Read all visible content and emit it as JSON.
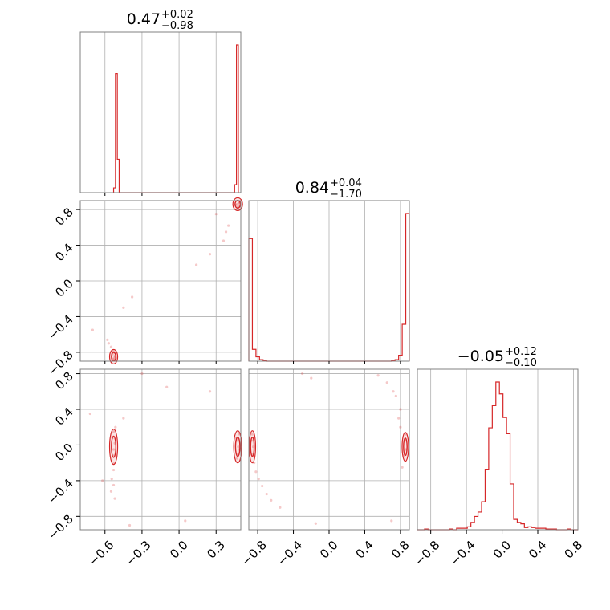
{
  "colors": {
    "accent": "#d62728",
    "grid": "#b0b0b0",
    "frame": "#808080"
  },
  "titles": {
    "p0": {
      "value": "0.47",
      "plus": "+0.02",
      "minus": "−0.98"
    },
    "p1": {
      "value": "0.84",
      "plus": "+0.04",
      "minus": "−1.70"
    },
    "p2": {
      "value": "−0.05",
      "plus": "+0.12",
      "minus": "−0.10"
    }
  },
  "chart_data": {
    "type": "corner",
    "grid": true,
    "params": [
      {
        "range": [
          -0.8,
          0.5
        ],
        "ticks": [
          -0.6,
          -0.3,
          0.0,
          0.3
        ],
        "tick_labels": [
          "−0.6",
          "−0.3",
          "0.0",
          "0.3"
        ],
        "quantile_lines": [
          -0.6,
          -0.3,
          0.0,
          0.3
        ],
        "histogram": {
          "bin_edges": [
            -0.53,
            -0.515,
            -0.5,
            -0.485,
            0.45,
            0.465,
            0.48
          ],
          "counts": [
            0.03,
            0.75,
            0.21,
            0,
            0.05,
            0.93
          ]
        }
      },
      {
        "range": [
          -0.9,
          0.9
        ],
        "ticks": [
          -0.8,
          -0.4,
          0.0,
          0.4,
          0.8
        ],
        "tick_labels": [
          "−0.8",
          "−0.4",
          "0.0",
          "0.4",
          "0.8"
        ],
        "quantile_lines": [
          -0.8,
          -0.4,
          0.0,
          0.4,
          0.8
        ],
        "histogram": {
          "bin_edges": [
            -0.9,
            -0.86,
            -0.82,
            -0.78,
            -0.74,
            -0.7,
            0.7,
            0.74,
            0.78,
            0.82,
            0.86,
            0.9
          ],
          "counts": [
            0.83,
            0.08,
            0.03,
            0.01,
            0.005,
            0,
            0.005,
            0.01,
            0.04,
            0.25,
            1.0
          ]
        }
      },
      {
        "range": [
          -0.95,
          0.85
        ],
        "ticks": [
          -0.8,
          -0.4,
          0.0,
          0.4,
          0.8
        ],
        "tick_labels": [
          "−0.8",
          "−0.4",
          "0.0",
          "0.4",
          "0.8"
        ],
        "quantile_lines": [
          -0.8,
          -0.4,
          0.0,
          0.4,
          0.8
        ],
        "histogram": {
          "bin_edges": [
            -0.95,
            -0.91,
            -0.87,
            -0.83,
            -0.79,
            -0.75,
            -0.71,
            -0.67,
            -0.63,
            -0.59,
            -0.55,
            -0.51,
            -0.47,
            -0.43,
            -0.39,
            -0.35,
            -0.31,
            -0.27,
            -0.23,
            -0.19,
            -0.15,
            -0.11,
            -0.07,
            -0.03,
            0.01,
            0.05,
            0.09,
            0.13,
            0.17,
            0.21,
            0.25,
            0.29,
            0.33,
            0.37,
            0.41,
            0.45,
            0.49,
            0.53,
            0.57,
            0.61,
            0.65,
            0.69,
            0.73,
            0.77,
            0.81,
            0.85
          ],
          "counts": [
            0,
            0,
            0.005,
            0,
            0,
            0,
            0,
            0,
            0,
            0.005,
            0,
            0.01,
            0.01,
            0.01,
            0.02,
            0.05,
            0.09,
            0.12,
            0.19,
            0.41,
            0.69,
            0.84,
            1.0,
            0.92,
            0.76,
            0.65,
            0.31,
            0.07,
            0.05,
            0.04,
            0.015,
            0.02,
            0.015,
            0.01,
            0.01,
            0.01,
            0.005,
            0.005,
            0.005,
            0,
            0,
            0,
            0.005,
            0,
            0
          ]
        }
      }
    ],
    "pairs": [
      {
        "row": 1,
        "col": 0,
        "contours": [],
        "samples": [
          [
            -0.53,
            -0.88
          ],
          [
            -0.52,
            -0.84
          ],
          [
            -0.54,
            -0.82
          ],
          [
            -0.51,
            -0.86
          ],
          [
            -0.525,
            -0.8
          ],
          [
            -0.535,
            -0.78
          ],
          [
            -0.55,
            -0.74
          ],
          [
            -0.57,
            -0.7
          ],
          [
            -0.58,
            -0.66
          ],
          [
            -0.53,
            -0.87
          ],
          [
            -0.52,
            -0.85
          ],
          [
            0.47,
            0.86
          ],
          [
            0.48,
            0.84
          ],
          [
            0.49,
            0.88
          ],
          [
            0.46,
            0.85
          ],
          [
            0.475,
            0.82
          ],
          [
            0.485,
            0.87
          ],
          [
            0.4,
            0.62
          ],
          [
            0.38,
            0.55
          ],
          [
            0.36,
            0.45
          ],
          [
            0.25,
            0.3
          ],
          [
            0.14,
            0.18
          ],
          [
            -0.45,
            -0.3
          ],
          [
            -0.38,
            -0.18
          ],
          [
            -0.7,
            -0.55
          ],
          [
            0.3,
            0.75
          ]
        ]
      },
      {
        "row": 2,
        "col": 0,
        "contours": [],
        "samples": [
          [
            -0.53,
            0.15
          ],
          [
            -0.54,
            0.08
          ],
          [
            -0.52,
            0.02
          ],
          [
            -0.53,
            -0.05
          ],
          [
            -0.535,
            -0.12
          ],
          [
            -0.525,
            -0.2
          ],
          [
            -0.53,
            -0.28
          ],
          [
            -0.545,
            -0.38
          ],
          [
            -0.55,
            -0.52
          ],
          [
            -0.515,
            0.2
          ],
          [
            -0.53,
            -0.45
          ],
          [
            -0.52,
            -0.6
          ],
          [
            0.47,
            0.05
          ],
          [
            0.48,
            -0.02
          ],
          [
            0.475,
            -0.1
          ],
          [
            0.465,
            0.08
          ],
          [
            0.485,
            -0.05
          ],
          [
            0.47,
            -0.15
          ],
          [
            0.49,
            0.12
          ],
          [
            -0.1,
            0.65
          ],
          [
            0.25,
            0.6
          ],
          [
            -0.62,
            -0.4
          ],
          [
            -0.45,
            0.3
          ],
          [
            -0.3,
            0.8
          ],
          [
            -0.72,
            0.35
          ],
          [
            0.05,
            -0.85
          ],
          [
            -0.4,
            -0.9
          ]
        ]
      },
      {
        "row": 2,
        "col": 1,
        "contours": [],
        "samples": [
          [
            -0.86,
            0.12
          ],
          [
            -0.87,
            0.05
          ],
          [
            -0.85,
            -0.02
          ],
          [
            -0.86,
            -0.1
          ],
          [
            -0.84,
            -0.2
          ],
          [
            -0.82,
            -0.3
          ],
          [
            -0.79,
            -0.38
          ],
          [
            -0.75,
            -0.46
          ],
          [
            -0.7,
            -0.55
          ],
          [
            -0.65,
            -0.62
          ],
          [
            0.85,
            0.05
          ],
          [
            0.86,
            -0.05
          ],
          [
            0.84,
            -0.12
          ],
          [
            0.86,
            0.12
          ],
          [
            0.8,
            0.4
          ],
          [
            0.75,
            0.55
          ],
          [
            0.72,
            0.6
          ],
          [
            0.65,
            0.7
          ],
          [
            0.55,
            0.78
          ],
          [
            -0.3,
            0.8
          ],
          [
            -0.2,
            0.75
          ],
          [
            -0.55,
            -0.7
          ],
          [
            0.7,
            -0.85
          ],
          [
            -0.15,
            -0.88
          ],
          [
            0.8,
            0.2
          ],
          [
            0.78,
            0.3
          ],
          [
            0.82,
            -0.25
          ]
        ]
      }
    ]
  }
}
